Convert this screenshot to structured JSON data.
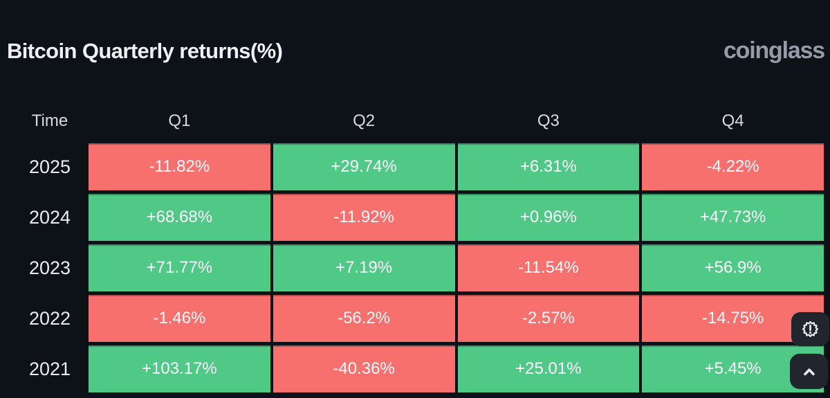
{
  "header": {
    "title": "Bitcoin Quarterly returns(%)",
    "logo_text": "coinglass"
  },
  "table": {
    "columns": [
      "Time",
      "Q1",
      "Q2",
      "Q3",
      "Q4"
    ],
    "rows": [
      {
        "year": "2025",
        "cells": [
          {
            "label": "-11.82%",
            "value": -11.82
          },
          {
            "label": "+29.74%",
            "value": 29.74
          },
          {
            "label": "+6.31%",
            "value": 6.31
          },
          {
            "label": "-4.22%",
            "value": -4.22
          }
        ]
      },
      {
        "year": "2024",
        "cells": [
          {
            "label": "+68.68%",
            "value": 68.68
          },
          {
            "label": "-11.92%",
            "value": -11.92
          },
          {
            "label": "+0.96%",
            "value": 0.96
          },
          {
            "label": "+47.73%",
            "value": 47.73
          }
        ]
      },
      {
        "year": "2023",
        "cells": [
          {
            "label": "+71.77%",
            "value": 71.77
          },
          {
            "label": "+7.19%",
            "value": 7.19
          },
          {
            "label": "-11.54%",
            "value": -11.54
          },
          {
            "label": "+56.9%",
            "value": 56.9
          }
        ]
      },
      {
        "year": "2022",
        "cells": [
          {
            "label": "-1.46%",
            "value": -1.46
          },
          {
            "label": "-56.2%",
            "value": -56.2
          },
          {
            "label": "-2.57%",
            "value": -2.57
          },
          {
            "label": "-14.75%",
            "value": -14.75
          }
        ]
      },
      {
        "year": "2021",
        "cells": [
          {
            "label": "+103.17%",
            "value": 103.17
          },
          {
            "label": "-40.36%",
            "value": -40.36
          },
          {
            "label": "+25.01%",
            "value": 25.01
          },
          {
            "label": "+5.45%",
            "value": 5.45
          }
        ]
      }
    ]
  },
  "chart_data": {
    "type": "heatmap",
    "title": "Bitcoin Quarterly returns(%)",
    "columns": [
      "Q1",
      "Q2",
      "Q3",
      "Q4"
    ],
    "rows": [
      "2025",
      "2024",
      "2023",
      "2022",
      "2021"
    ],
    "values": [
      [
        -11.82,
        29.74,
        6.31,
        -4.22
      ],
      [
        68.68,
        -11.92,
        0.96,
        47.73
      ],
      [
        71.77,
        7.19,
        -11.54,
        56.9
      ],
      [
        -1.46,
        -56.2,
        -2.57,
        -14.75
      ],
      [
        103.17,
        -40.36,
        25.01,
        5.45
      ]
    ],
    "unit": "%",
    "legend_position": "none",
    "color_rule": "positive=green, negative=red"
  },
  "colors": {
    "background": "#0d1118",
    "positive": "#50c886",
    "negative": "#f7706d",
    "title_text": "#eef0f3",
    "logo_text": "#959ca7",
    "header_text": "#d8dbe0",
    "cell_text": "#fcfdfe",
    "fab_background": "#20252e"
  },
  "fabs": {
    "notice_icon": "badge-exclamation-icon",
    "scroll_top_icon": "chevron-up-icon"
  }
}
